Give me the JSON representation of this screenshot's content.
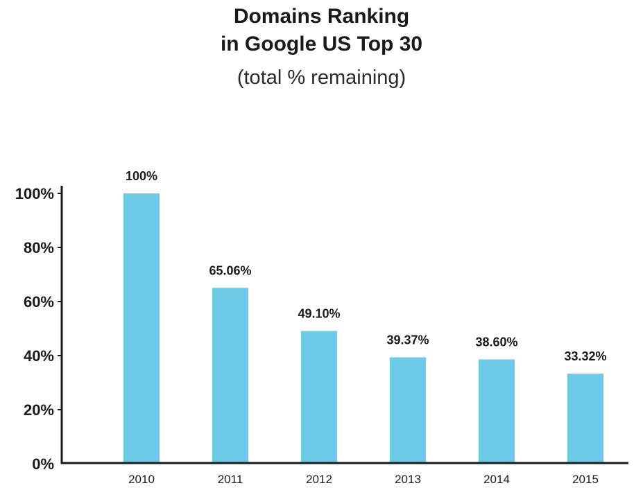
{
  "chart_data": {
    "type": "bar",
    "title_line1": "Domains Ranking",
    "title_line2": "in Google US Top 30",
    "subtitle": "(total % remaining)",
    "xlabel": "",
    "ylabel": "",
    "categories": [
      "2010",
      "2011",
      "2012",
      "2013",
      "2014",
      "2015"
    ],
    "values": [
      100,
      65.06,
      49.1,
      39.37,
      38.6,
      33.32
    ],
    "data_labels": [
      "100%",
      "65.06%",
      "49.10%",
      "39.37%",
      "38.60%",
      "33.32%"
    ],
    "ylim": [
      0,
      100
    ],
    "yticks": [
      0,
      20,
      40,
      60,
      80,
      100
    ],
    "ytick_labels": [
      "0%",
      "20%",
      "40%",
      "60%",
      "80%",
      "100%"
    ],
    "bar_color": "#6ecbe8",
    "axis_color": "#1a1a1a",
    "grid": false,
    "legend": "none"
  }
}
